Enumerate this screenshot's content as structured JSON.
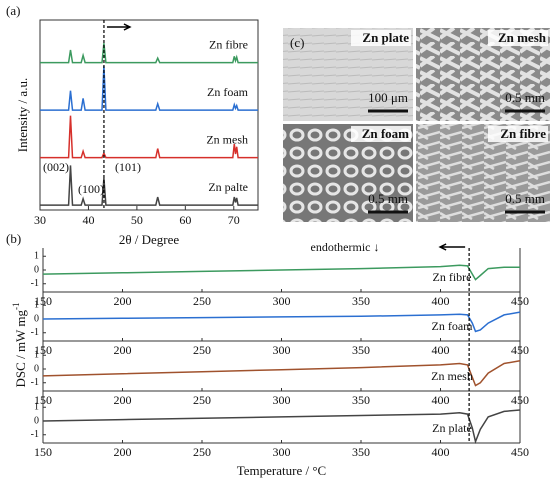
{
  "chart_data": [
    {
      "type": "line",
      "panel_label": "(a)",
      "xlabel": "2θ / Degree",
      "ylabel": "Intensity / a.u.",
      "xlim": [
        30,
        75
      ],
      "xticks": [
        30,
        40,
        50,
        60,
        70
      ],
      "ylim": [
        0,
        100
      ],
      "reference_x": 43.2,
      "annotations": [
        "(002)",
        "(100)",
        "(101)"
      ],
      "x": [
        30,
        35.9,
        36.3,
        36.7,
        38.5,
        38.9,
        39.3,
        42.8,
        43.2,
        43.6,
        53.9,
        54.3,
        54.7,
        69.8,
        70.1,
        70.35,
        70.6,
        70.9,
        75
      ],
      "series": [
        {
          "name": "Zn fibre",
          "color": "#3c9a5f",
          "values": [
            2,
            2,
            30,
            2,
            2,
            18,
            2,
            2,
            45,
            2,
            2,
            12,
            2,
            2,
            16,
            6,
            14,
            2,
            2
          ]
        },
        {
          "name": "Zn foam",
          "color": "#2b6fd1",
          "values": [
            2,
            2,
            45,
            2,
            2,
            28,
            2,
            2,
            100,
            2,
            2,
            16,
            2,
            2,
            14,
            6,
            12,
            2,
            2
          ]
        },
        {
          "name": "Zn mesh",
          "color": "#d6302b",
          "values": [
            2,
            2,
            95,
            2,
            2,
            16,
            2,
            2,
            12,
            2,
            2,
            22,
            2,
            2,
            32,
            10,
            26,
            2,
            2
          ]
        },
        {
          "name": "Zn palte",
          "color": "#444444",
          "values": [
            2,
            2,
            90,
            2,
            2,
            16,
            2,
            2,
            62,
            2,
            2,
            20,
            2,
            2,
            20,
            8,
            18,
            2,
            2
          ]
        }
      ]
    },
    {
      "type": "line",
      "panel_label": "(b)",
      "xlabel": "Temperature / °C",
      "ylabel": "DSC / mW mg",
      "ylabel_sup": "-1",
      "xlim": [
        150,
        450
      ],
      "xticks": [
        150,
        200,
        250,
        300,
        350,
        400,
        450
      ],
      "ylim": [
        -1.6,
        1.6
      ],
      "yticks": [
        -1,
        0,
        1
      ],
      "reference_x": 418,
      "annotations": [
        "endothermic ↓"
      ],
      "x": [
        150,
        200,
        250,
        300,
        350,
        400,
        412,
        417,
        420,
        422,
        425,
        430,
        440,
        450
      ],
      "series": [
        {
          "name": "Zn fibre",
          "color": "#3c9a5f",
          "values": [
            -0.3,
            -0.2,
            -0.1,
            0,
            0.1,
            0.25,
            0.35,
            0.3,
            -0.3,
            -0.7,
            -0.4,
            0.1,
            0.2,
            0.2
          ]
        },
        {
          "name": "Zn foam",
          "color": "#2b6fd1",
          "values": [
            0,
            0.05,
            0.1,
            0.15,
            0.2,
            0.3,
            0.35,
            0.3,
            -0.3,
            -0.9,
            -0.8,
            -0.3,
            0.3,
            0.5
          ]
        },
        {
          "name": "Zn mesh",
          "color": "#a0522d",
          "values": [
            -0.5,
            -0.35,
            -0.2,
            -0.05,
            0.1,
            0.3,
            0.4,
            0.3,
            -0.6,
            -1.2,
            -1.0,
            -0.3,
            0.4,
            0.6
          ]
        },
        {
          "name": "Zn plate",
          "color": "#444444",
          "values": [
            0,
            0.1,
            0.2,
            0.3,
            0.4,
            0.5,
            0.6,
            0.5,
            -0.5,
            -1.5,
            -0.6,
            0.3,
            0.7,
            0.8
          ]
        }
      ]
    }
  ],
  "micrographs": {
    "panel_label": "(c)",
    "items": [
      {
        "label": "Zn plate",
        "scale": "100 μm"
      },
      {
        "label": "Zn mesh",
        "scale": "0.5 mm"
      },
      {
        "label": "Zn foam",
        "scale": "0.5 mm"
      },
      {
        "label": "Zn fibre",
        "scale": "0.5 mm"
      }
    ]
  }
}
